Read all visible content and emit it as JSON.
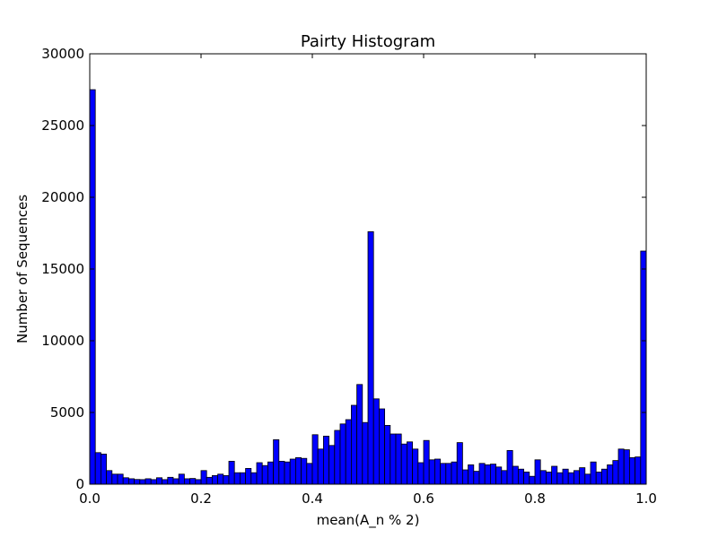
{
  "chart_data": {
    "type": "bar",
    "title": "Pairty Histogram",
    "xlabel": "mean(A_n % 2)",
    "ylabel": "Number of Sequences",
    "xlim": [
      0.0,
      1.0
    ],
    "ylim": [
      0,
      30000
    ],
    "xticks": [
      0.0,
      0.2,
      0.4,
      0.6,
      0.8,
      1.0
    ],
    "xtick_labels": [
      "0.0",
      "0.2",
      "0.4",
      "0.6",
      "0.8",
      "1.0"
    ],
    "yticks": [
      0,
      5000,
      10000,
      15000,
      20000,
      25000,
      30000
    ],
    "ytick_labels": [
      "0",
      "5000",
      "10000",
      "15000",
      "20000",
      "25000",
      "30000"
    ],
    "bin_start": 0.0,
    "bin_end": 1.0,
    "bar_color": "#0000ff",
    "values": [
      27500,
      2200,
      2100,
      950,
      700,
      700,
      450,
      380,
      330,
      320,
      380,
      320,
      450,
      320,
      480,
      380,
      700,
      380,
      400,
      320,
      950,
      480,
      600,
      700,
      600,
      1600,
      800,
      800,
      1100,
      800,
      1500,
      1300,
      1550,
      3100,
      1600,
      1550,
      1750,
      1850,
      1800,
      1450,
      3450,
      2450,
      3350,
      2700,
      3750,
      4200,
      4500,
      5500,
      6950,
      4300,
      17600,
      5950,
      5250,
      4100,
      3500,
      3500,
      2800,
      2950,
      2450,
      1500,
      3050,
      1700,
      1750,
      1450,
      1450,
      1550,
      2900,
      1000,
      1350,
      900,
      1450,
      1350,
      1400,
      1200,
      950,
      2350,
      1250,
      1050,
      850,
      550,
      1700,
      950,
      850,
      1250,
      800,
      1050,
      800,
      950,
      1150,
      700,
      1550,
      850,
      1050,
      1350,
      1650,
      2450,
      2400,
      1850,
      1900,
      16250
    ]
  }
}
